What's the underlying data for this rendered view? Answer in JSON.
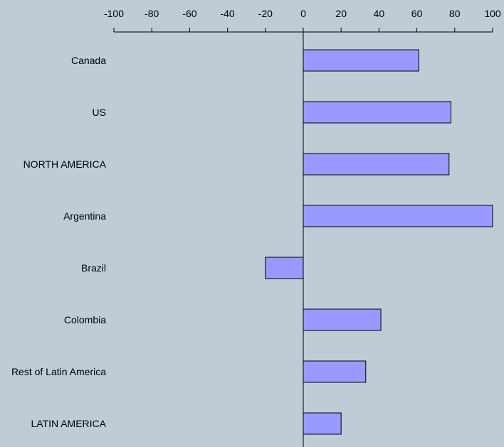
{
  "chart_data": {
    "type": "bar",
    "orientation": "horizontal",
    "categories": [
      "Canada",
      "US",
      "NORTH AMERICA",
      "Argentina",
      "Brazil",
      "Colombia",
      "Rest of Latin America",
      "LATIN AMERICA"
    ],
    "values": [
      61,
      78,
      77,
      100,
      -20,
      41,
      33,
      20
    ],
    "x_ticks": [
      -100,
      -80,
      -60,
      -40,
      -20,
      0,
      20,
      40,
      60,
      80,
      100
    ],
    "xlim": [
      -100,
      100
    ],
    "x_axis_position": "top",
    "grid": false,
    "title": "",
    "xlabel": "",
    "ylabel": "",
    "colors": {
      "bar_fill": "#9999ff",
      "bar_stroke": "#000000",
      "background": "#c0ccd5"
    }
  }
}
